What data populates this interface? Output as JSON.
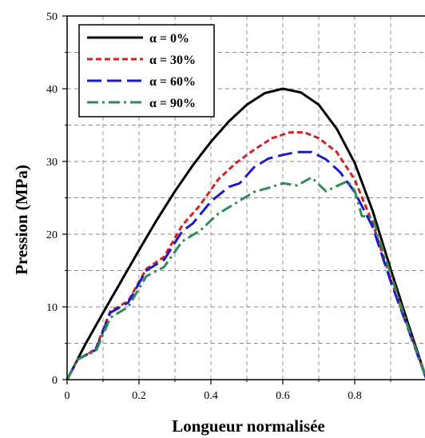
{
  "chart_data": {
    "type": "line",
    "title": "",
    "xlabel": "Longueur normalisée",
    "ylabel": "Pression (MPa)",
    "xlim": [
      0,
      1
    ],
    "ylim": [
      0,
      50
    ],
    "x_ticks": [
      "0",
      "0.2",
      "0.4",
      "0.6",
      "0.8"
    ],
    "y_ticks": [
      "0",
      "10",
      "20",
      "30",
      "40",
      "50"
    ],
    "grid": true,
    "legend_position": "top-left",
    "series": [
      {
        "name": "α = 0%",
        "color": "#000000",
        "dash": "solid",
        "x": [
          0,
          0.05,
          0.1,
          0.15,
          0.2,
          0.25,
          0.3,
          0.35,
          0.4,
          0.45,
          0.5,
          0.55,
          0.6,
          0.65,
          0.7,
          0.75,
          0.8,
          0.85,
          0.9,
          0.95,
          1.0
        ],
        "y": [
          0,
          4.8,
          9.2,
          13.5,
          17.8,
          22.0,
          25.9,
          29.5,
          32.7,
          35.5,
          37.8,
          39.4,
          40.0,
          39.5,
          37.8,
          34.5,
          29.8,
          23.2,
          15.2,
          7.5,
          0
        ]
      },
      {
        "name": "α = 30%",
        "color": "#d42020",
        "dash": "short",
        "x": [
          0,
          0.03,
          0.06,
          0.08,
          0.12,
          0.17,
          0.22,
          0.27,
          0.32,
          0.37,
          0.42,
          0.47,
          0.52,
          0.57,
          0.62,
          0.66,
          0.7,
          0.75,
          0.8,
          0.85,
          0.9,
          0.95,
          1.0
        ],
        "y": [
          0,
          2.8,
          3.6,
          4.3,
          9.4,
          10.8,
          15.2,
          16.9,
          21.2,
          24.0,
          27.5,
          29.8,
          31.6,
          33.2,
          34.0,
          34.0,
          33.2,
          31.3,
          27.5,
          21.5,
          13.8,
          7.0,
          0
        ]
      },
      {
        "name": "α = 60%",
        "color": "#1a1acc",
        "dash": "long",
        "x": [
          0,
          0.03,
          0.06,
          0.08,
          0.12,
          0.17,
          0.22,
          0.27,
          0.32,
          0.35,
          0.4,
          0.45,
          0.48,
          0.52,
          0.56,
          0.6,
          0.64,
          0.68,
          0.72,
          0.76,
          0.8,
          0.85,
          0.9,
          0.95,
          1.0
        ],
        "y": [
          0,
          2.8,
          3.6,
          4.1,
          9.2,
          10.6,
          15.0,
          16.5,
          20.4,
          21.5,
          24.5,
          26.5,
          27.0,
          29.2,
          30.4,
          30.9,
          31.3,
          31.3,
          30.3,
          28.5,
          25.8,
          21.0,
          13.5,
          6.8,
          0
        ]
      },
      {
        "name": "α = 90%",
        "color": "#2e8b57",
        "dash": "dashdot",
        "x": [
          0,
          0.03,
          0.06,
          0.08,
          0.12,
          0.17,
          0.22,
          0.27,
          0.32,
          0.37,
          0.42,
          0.47,
          0.52,
          0.57,
          0.6,
          0.64,
          0.68,
          0.72,
          0.75,
          0.78,
          0.8,
          0.82,
          0.85,
          0.9,
          0.95,
          1.0
        ],
        "y": [
          0,
          2.8,
          3.5,
          3.9,
          8.5,
          10.0,
          14.2,
          15.5,
          19.0,
          20.5,
          22.8,
          24.3,
          25.8,
          26.5,
          27.0,
          26.7,
          27.8,
          25.9,
          26.6,
          27.3,
          26.0,
          22.5,
          22.3,
          14.5,
          7.0,
          0
        ]
      }
    ]
  }
}
